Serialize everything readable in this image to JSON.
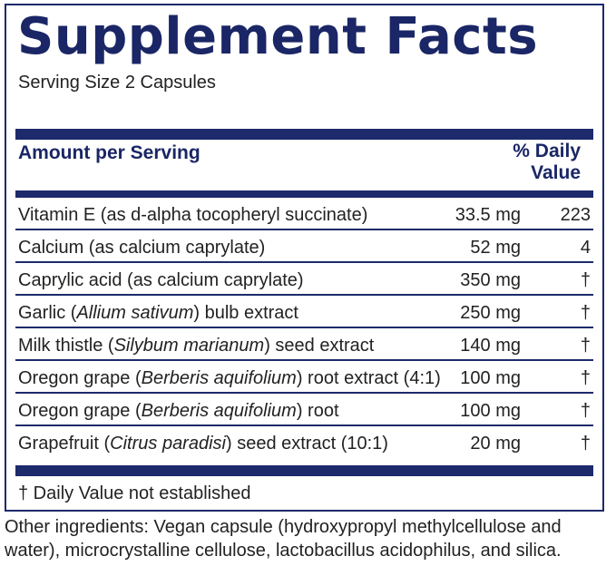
{
  "title": "Supplement Facts",
  "serving_size": "Serving Size 2 Capsules",
  "header": {
    "amount_label": "Amount per Serving",
    "daily_value_line1": "% Daily",
    "daily_value_line2": "Value"
  },
  "rows": [
    {
      "pre": "Vitamin E (as d-alpha tocopheryl succinate)",
      "italic": "",
      "post": "",
      "amount": "33.5 mg",
      "dv": "223"
    },
    {
      "pre": "Calcium (as calcium caprylate)",
      "italic": "",
      "post": "",
      "amount": "52 mg",
      "dv": "4"
    },
    {
      "pre": "Caprylic acid (as calcium caprylate)",
      "italic": "",
      "post": "",
      "amount": "350 mg",
      "dv": "†"
    },
    {
      "pre": "Garlic (",
      "italic": "Allium sativum",
      "post": ") bulb extract",
      "amount": "250 mg",
      "dv": "†"
    },
    {
      "pre": "Milk thistle (",
      "italic": "Silybum marianum",
      "post": ") seed extract",
      "amount": "140 mg",
      "dv": "†"
    },
    {
      "pre": "Oregon grape (",
      "italic": "Berberis aquifolium",
      "post": ") root extract (4:1)",
      "amount": "100 mg",
      "dv": "†"
    },
    {
      "pre": "Oregon grape (",
      "italic": "Berberis aquifolium",
      "post": ") root",
      "amount": "100 mg",
      "dv": "†"
    },
    {
      "pre": "Grapefruit (",
      "italic": "Citrus paradisi",
      "post": ") seed extract (10:1)",
      "amount": "20 mg",
      "dv": "†"
    }
  ],
  "footnote": "† Daily Value not established",
  "other_ingredients": "Other ingredients: Vegan capsule (hydroxypropyl methylcellulose and water), microcrystalline cellulose, lactobacillus acidophilus, and silica.",
  "colors": {
    "navy": "#1d2a6b",
    "text": "#222222"
  }
}
